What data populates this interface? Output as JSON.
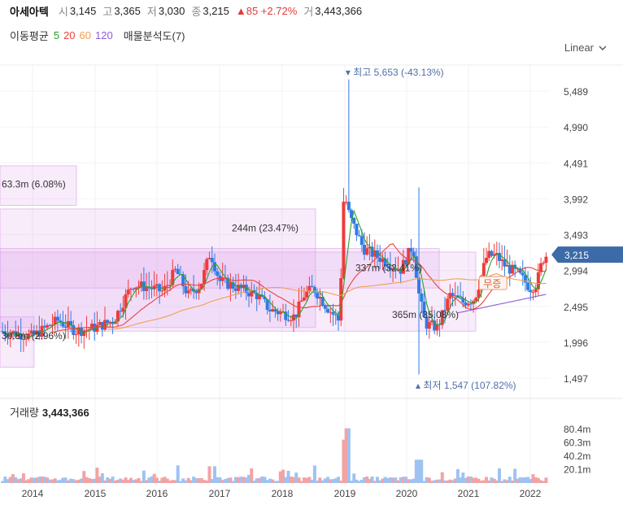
{
  "header": {
    "name": "아세아텍",
    "open_label": "시",
    "open": "3,145",
    "high_label": "고",
    "high": "3,365",
    "low_label": "저",
    "low": "3,030",
    "close_label": "종",
    "close": "3,215",
    "change": "▲85 +2.72%",
    "volume_label": "거",
    "volume": "3,443,366"
  },
  "ma": {
    "title": "이동평균",
    "lines": [
      {
        "period": "5",
        "color": "#2ca02c"
      },
      {
        "period": "20",
        "color": "#e8443a"
      },
      {
        "period": "60",
        "color": "#f0a050"
      },
      {
        "period": "120",
        "color": "#8e5bd6"
      }
    ],
    "volume_profile": "매물분석도(7)"
  },
  "scale_button": "Linear",
  "chart_data": {
    "type": "candlestick",
    "price_axis": {
      "ticks": [
        "5,489",
        "4,990",
        "4,491",
        "3,992",
        "3,493",
        "2,994",
        "2,495",
        "1,996",
        "1,497"
      ],
      "ylim": [
        1300,
        6000
      ]
    },
    "current_price": "3,215",
    "max_marker": "최고 5,653 (-43.13%)",
    "min_marker": "최저 1,547 (107.82%)",
    "x_ticks": [
      "2014",
      "2015",
      "2016",
      "2017",
      "2018",
      "2019",
      "2020",
      "2021",
      "2022"
    ],
    "volume_axis": {
      "ticks": [
        "80.4m",
        "60.3m",
        "40.2m",
        "20.1m"
      ],
      "max": 95
    },
    "volume_label": "거래량",
    "volume_value": "3,443,366",
    "badge": "무증",
    "profile": [
      {
        "label": "30.8m (2.96%)",
        "low": 1650,
        "high": 2350
      },
      {
        "label": "365m (35.08%)",
        "low": 2150,
        "high": 3250
      },
      {
        "label": "337m (32.41%)",
        "low": 2750,
        "high": 3300
      },
      {
        "label": "244m (23.47%)",
        "low": 2200,
        "high": 3850
      },
      {
        "label": "63.3m (6.08%)",
        "low": 3900,
        "high": 4450
      }
    ]
  }
}
